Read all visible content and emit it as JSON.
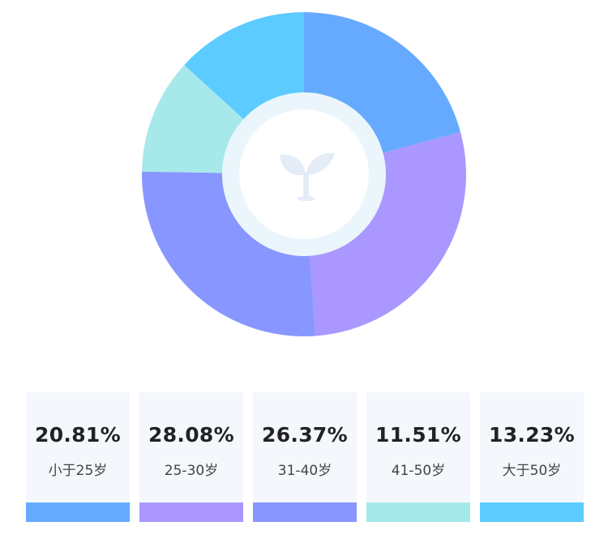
{
  "chart_data": {
    "type": "pie",
    "style": "donut",
    "center_icon": "sprout-icon",
    "slices": [
      {
        "label": "小于25岁",
        "value": 20.81,
        "value_text": "20.81%",
        "color": "#66aaff"
      },
      {
        "label": "25-30岁",
        "value": 28.08,
        "value_text": "28.08%",
        "color": "#aa97ff"
      },
      {
        "label": "31-40岁",
        "value": 26.37,
        "value_text": "26.37%",
        "color": "#8896ff"
      },
      {
        "label": "41-50岁",
        "value": 11.51,
        "value_text": "11.51%",
        "color": "#a7e8ea"
      },
      {
        "label": "大于50岁",
        "value": 13.23,
        "value_text": "13.23%",
        "color": "#5ccbff"
      }
    ]
  }
}
